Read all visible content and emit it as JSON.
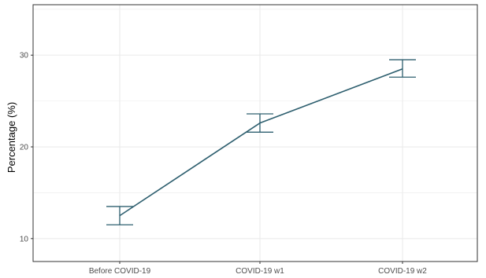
{
  "chart_data": {
    "type": "line",
    "categories": [
      "Before COVID-19",
      "COVID-19 w1",
      "COVID-19 w2"
    ],
    "values": [
      12.5,
      22.6,
      28.5
    ],
    "error_lower": [
      11.5,
      21.6,
      27.6
    ],
    "error_upper": [
      13.5,
      23.6,
      29.5
    ],
    "xlabel": "",
    "ylabel": "Percentage (%)",
    "ylim": [
      7.5,
      35.5
    ],
    "yticks": [
      10,
      20,
      30
    ],
    "grid": true,
    "colors": {
      "series": "#2e5f6f",
      "grid": "#ebebeb",
      "panel_border": "#333333"
    }
  }
}
